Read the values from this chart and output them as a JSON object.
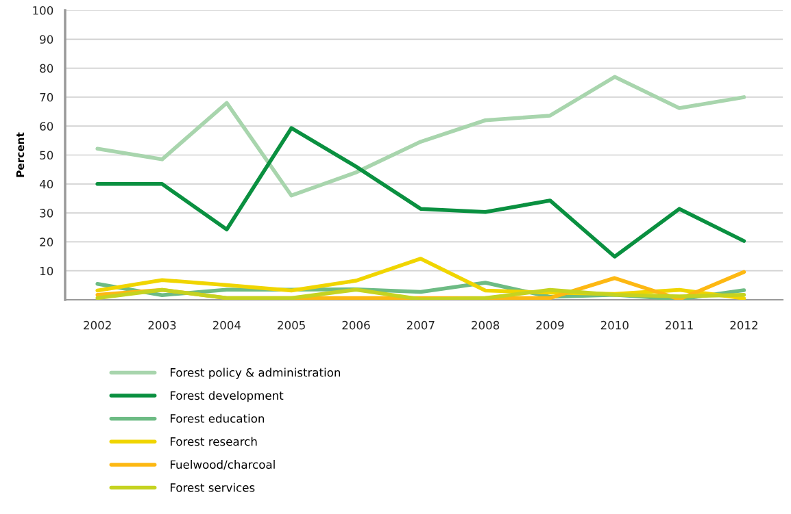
{
  "chart_data": {
    "type": "line",
    "ylabel": "Percent",
    "x": [
      2002,
      2003,
      2004,
      2005,
      2006,
      2007,
      2008,
      2009,
      2010,
      2011,
      2012
    ],
    "xlim": [
      2001.5,
      2012.6
    ],
    "xticks": [
      2002,
      2003,
      2004,
      2005,
      2006,
      2007,
      2008,
      2009,
      2010,
      2011,
      2012
    ],
    "ylim": [
      0,
      100
    ],
    "yticks": [
      {
        "value": 0,
        "label": null
      },
      10,
      20,
      30,
      40,
      50,
      60,
      70,
      80,
      90,
      100
    ],
    "grid": "y",
    "legend": "bottom left",
    "marker": "none",
    "line_style": "solid",
    "series": [
      {
        "name": "Forest policy & administration",
        "color": "#a8d5ad",
        "values": [
          52.2,
          48.5,
          68,
          36,
          44,
          54.6,
          62,
          63.6,
          77,
          66.2,
          70
        ]
      },
      {
        "name": "Forest development",
        "color": "#0a9040",
        "values": [
          40,
          40,
          24.3,
          59.3,
          46,
          31.4,
          30.3,
          34.3,
          14.9,
          31.4,
          20.3
        ]
      },
      {
        "name": "Forest education",
        "color": "#6dbb84",
        "values": [
          5.5,
          1.6,
          3.5,
          3.5,
          3.6,
          2.7,
          5.9,
          1.0,
          1.7,
          0.2,
          3.3
        ]
      },
      {
        "name": "Forest research",
        "color": "#f0d500",
        "values": [
          3.2,
          6.8,
          5.1,
          3.2,
          6.6,
          14.2,
          3.2,
          2.5,
          2.0,
          3.4,
          0.5
        ]
      },
      {
        "name": "Fuelwood/charcoal",
        "color": "#fdb813",
        "values": [
          1.7,
          3.4,
          0.6,
          0.6,
          0.6,
          0.6,
          0.6,
          0.6,
          7.5,
          0.2,
          9.6
        ]
      },
      {
        "name": "Forest services",
        "color": "#c5d321",
        "values": [
          0.6,
          3.4,
          0.6,
          0.6,
          3.5,
          0.2,
          0.6,
          3.4,
          1.7,
          1.2,
          1.7
        ]
      }
    ]
  }
}
